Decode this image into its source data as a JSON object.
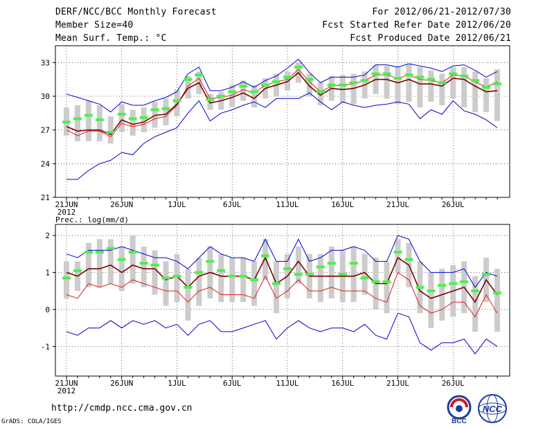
{
  "header": {
    "title": "DERF/NCC/BCC Monthly Forecast",
    "member_size": "Member Size=40",
    "variable": "Mean Surf. Temp.: °C",
    "forecast_period": "For 2012/06/21-2012/07/30",
    "refer_date": "Fcst Started Refer Date 2012/06/20",
    "produced_date": "Fcst Produced Date 2012/06/21"
  },
  "footer": {
    "url": "http://cmdp.ncc.cma.gov.cn",
    "grads": "GrADS: COLA/IGES",
    "logo_bcc": "BCC",
    "logo_ncc": "NCC"
  },
  "colors": {
    "spread": "#cccccc",
    "median": "#4cf04c",
    "mean": "#000000",
    "obs": "#7a0000",
    "red": "#e21b1b",
    "envelope": "#0000cc"
  },
  "chart_data": [
    {
      "type": "line",
      "title": "Mean Surf. Temp.: °C",
      "x_tick_labels": [
        "21JUN",
        "26JUN",
        "1JUL",
        "6JUL",
        "11JUL",
        "16JUL",
        "21JUL",
        "26JUL"
      ],
      "x_tick_days": [
        1,
        6,
        11,
        16,
        21,
        26,
        31,
        36
      ],
      "x_year_label": "2012",
      "days": 40,
      "ylim": [
        21,
        34.5
      ],
      "y_ticks": [
        21,
        24,
        27,
        30,
        33
      ],
      "y_tick_labels": [
        "21",
        "24",
        "27",
        "30",
        "33"
      ],
      "series": [
        {
          "name": "max",
          "values": [
            30.2,
            29.9,
            29.6,
            29.3,
            28.6,
            29.5,
            29.2,
            29.2,
            29.6,
            29.9,
            30.4,
            32.0,
            32.6,
            30.5,
            30.5,
            30.8,
            31.3,
            30.8,
            31.4,
            31.8,
            32.5,
            33.3,
            32.1,
            31.2,
            31.7,
            31.7,
            31.7,
            31.9,
            32.8,
            32.8,
            32.6,
            32.9,
            32.7,
            32.5,
            32.2,
            32.7,
            32.8,
            32.3,
            31.7,
            32.2
          ]
        },
        {
          "name": "min",
          "values": [
            22.6,
            22.6,
            23.4,
            24.0,
            24.3,
            25.0,
            24.8,
            25.8,
            26.4,
            26.8,
            27.2,
            28.5,
            29.6,
            27.8,
            28.5,
            28.8,
            29.2,
            29.5,
            29.0,
            29.8,
            29.8,
            29.8,
            30.3,
            29.5,
            28.8,
            29.5,
            29.2,
            29.0,
            29.2,
            29.3,
            29.5,
            29.3,
            28.0,
            28.8,
            28.4,
            29.6,
            28.7,
            28.4,
            27.9,
            27.2
          ]
        },
        {
          "name": "mean",
          "values": [
            27.3,
            26.9,
            27.0,
            27.0,
            26.6,
            27.9,
            27.5,
            27.7,
            28.3,
            28.4,
            29.3,
            30.7,
            31.2,
            29.4,
            29.6,
            29.9,
            30.3,
            29.8,
            30.7,
            31.0,
            31.3,
            32.1,
            30.9,
            30.1,
            30.7,
            30.6,
            30.7,
            31.0,
            31.5,
            31.5,
            31.2,
            31.5,
            31.1,
            31.1,
            30.9,
            31.6,
            31.5,
            30.9,
            30.4,
            30.5
          ]
        },
        {
          "name": "red",
          "values": [
            27.0,
            26.5,
            26.9,
            26.9,
            26.4,
            27.6,
            27.3,
            27.5,
            28.0,
            28.2,
            29.2,
            30.9,
            31.6,
            29.8,
            29.9,
            30.1,
            30.6,
            30.3,
            31.0,
            31.3,
            31.5,
            32.4,
            31.3,
            30.4,
            30.9,
            31.0,
            31.1,
            31.4,
            31.9,
            31.9,
            31.6,
            31.9,
            31.5,
            31.4,
            31.2,
            31.9,
            31.8,
            31.3,
            30.8,
            31.3
          ]
        },
        {
          "name": "median",
          "values": [
            27.7,
            28.0,
            28.3,
            27.9,
            26.8,
            28.4,
            28.0,
            28.1,
            28.8,
            28.9,
            29.6,
            31.5,
            31.9,
            29.7,
            30.0,
            30.4,
            30.9,
            30.4,
            31.0,
            31.3,
            31.7,
            32.6,
            31.5,
            30.4,
            31.0,
            31.0,
            31.2,
            31.4,
            32.0,
            32.0,
            31.6,
            31.9,
            31.7,
            31.5,
            31.2,
            32.0,
            31.8,
            31.4,
            30.8,
            31.1
          ]
        },
        {
          "name": "spread_low",
          "values": [
            26.5,
            26.0,
            26.0,
            26.0,
            25.8,
            26.8,
            26.5,
            26.8,
            27.2,
            27.4,
            28.2,
            29.8,
            30.2,
            28.8,
            28.8,
            29.0,
            29.6,
            29.0,
            29.8,
            30.0,
            30.5,
            31.2,
            30.0,
            29.2,
            29.6,
            29.4,
            29.3,
            29.8,
            30.2,
            29.8,
            29.3,
            29.5,
            29.0,
            29.5,
            29.2,
            29.8,
            29.0,
            28.6,
            28.6,
            27.8
          ]
        },
        {
          "name": "spread_high",
          "values": [
            29.0,
            29.2,
            29.6,
            29.2,
            28.2,
            29.3,
            28.8,
            29.0,
            29.5,
            29.8,
            30.6,
            31.8,
            32.2,
            30.2,
            30.4,
            31.0,
            31.4,
            31.0,
            31.6,
            32.0,
            32.2,
            33.0,
            32.0,
            31.2,
            31.8,
            31.9,
            32.0,
            32.2,
            32.8,
            32.7,
            32.6,
            32.9,
            32.6,
            32.3,
            32.0,
            32.6,
            32.6,
            32.2,
            31.6,
            32.4
          ]
        }
      ]
    },
    {
      "type": "line",
      "title": "Prec.: log(mm/d)",
      "x_tick_labels": [
        "21JUN",
        "26JUN",
        "1JUL",
        "6JUL",
        "11JUL",
        "16JUL",
        "21JUL",
        "26JUL"
      ],
      "x_tick_days": [
        1,
        6,
        11,
        16,
        21,
        26,
        31,
        36
      ],
      "x_year_label": "2012",
      "days": 40,
      "ylim": [
        -1.8,
        2.3
      ],
      "y_ticks": [
        -1,
        0,
        1,
        2
      ],
      "y_tick_labels": [
        "-1",
        "0",
        "1",
        "2"
      ],
      "series": [
        {
          "name": "max",
          "values": [
            1.5,
            1.4,
            1.6,
            1.6,
            1.6,
            1.7,
            1.6,
            1.5,
            1.4,
            1.4,
            1.3,
            1.1,
            1.4,
            1.7,
            1.5,
            1.4,
            1.4,
            1.3,
            1.9,
            1.3,
            1.3,
            1.9,
            1.3,
            1.4,
            1.6,
            1.6,
            1.7,
            1.6,
            1.3,
            1.3,
            2.0,
            1.9,
            1.3,
            1.0,
            1.0,
            1.0,
            1.1,
            0.6,
            1.0,
            0.9
          ]
        },
        {
          "name": "min",
          "values": [
            -0.6,
            -0.7,
            -0.5,
            -0.5,
            -0.3,
            -0.5,
            -0.3,
            -0.4,
            -0.3,
            -0.5,
            -0.4,
            -0.7,
            -0.4,
            -0.3,
            -0.6,
            -0.6,
            -0.5,
            -0.4,
            -0.3,
            -0.8,
            -0.5,
            -0.3,
            -0.5,
            -0.6,
            -0.5,
            -0.5,
            -0.6,
            -0.4,
            -0.7,
            -0.8,
            -0.1,
            -0.2,
            -0.9,
            -1.1,
            -0.9,
            -0.9,
            -0.8,
            -1.2,
            -0.8,
            -1.0
          ]
        },
        {
          "name": "mean",
          "values": [
            1.0,
            0.9,
            1.1,
            1.1,
            1.2,
            1.0,
            1.2,
            1.1,
            1.1,
            0.8,
            0.9,
            0.6,
            0.9,
            1.0,
            0.9,
            0.9,
            0.9,
            0.8,
            1.4,
            0.7,
            0.9,
            1.3,
            0.9,
            0.9,
            0.9,
            0.9,
            0.9,
            1.0,
            0.7,
            0.7,
            1.4,
            1.2,
            0.5,
            0.3,
            0.4,
            0.5,
            0.6,
            0.2,
            0.8,
            0.4
          ]
        },
        {
          "name": "red",
          "values": [
            0.4,
            0.3,
            0.7,
            0.6,
            0.7,
            0.6,
            0.8,
            0.7,
            0.6,
            0.5,
            0.5,
            0.2,
            0.5,
            0.6,
            0.4,
            0.4,
            0.4,
            0.3,
            0.9,
            0.3,
            0.5,
            0.8,
            0.5,
            0.5,
            0.6,
            0.5,
            0.5,
            0.5,
            0.3,
            0.2,
            1.0,
            0.8,
            0.1,
            -0.1,
            0.0,
            0.2,
            0.2,
            -0.2,
            0.4,
            -0.1
          ]
        },
        {
          "name": "median",
          "values": [
            0.85,
            1.05,
            1.55,
            1.55,
            1.65,
            1.35,
            1.55,
            1.25,
            1.2,
            0.85,
            0.9,
            0.6,
            1.0,
            1.3,
            1.05,
            0.9,
            0.9,
            0.8,
            1.45,
            0.7,
            1.1,
            0.95,
            0.95,
            1.15,
            1.25,
            0.95,
            1.25,
            0.85,
            0.75,
            0.75,
            1.55,
            1.35,
            0.6,
            0.5,
            0.65,
            0.7,
            0.75,
            0.5,
            0.95,
            0.45
          ]
        },
        {
          "name": "spread_low",
          "values": [
            0.3,
            0.5,
            0.6,
            0.6,
            0.7,
            0.5,
            0.7,
            0.6,
            0.4,
            0.1,
            0.2,
            -0.3,
            0.1,
            0.3,
            0.2,
            0.2,
            0.2,
            0.1,
            0.8,
            -0.1,
            0.3,
            0.7,
            0.3,
            0.2,
            0.3,
            0.2,
            0.2,
            0.4,
            0.0,
            -0.1,
            1.0,
            0.6,
            -0.1,
            -0.5,
            -0.3,
            -0.2,
            -0.1,
            -0.6,
            0.2,
            -0.6
          ]
        },
        {
          "name": "spread_high",
          "values": [
            1.3,
            1.3,
            1.8,
            1.9,
            1.9,
            1.7,
            2.0,
            1.7,
            1.6,
            1.3,
            1.5,
            1.1,
            1.4,
            1.7,
            1.5,
            1.4,
            1.4,
            1.3,
            1.9,
            1.3,
            1.5,
            1.7,
            1.5,
            1.5,
            1.7,
            1.6,
            1.7,
            1.5,
            1.4,
            1.3,
            1.9,
            1.8,
            1.3,
            1.0,
            1.1,
            1.2,
            1.3,
            0.9,
            1.4,
            1.1
          ]
        }
      ]
    }
  ]
}
